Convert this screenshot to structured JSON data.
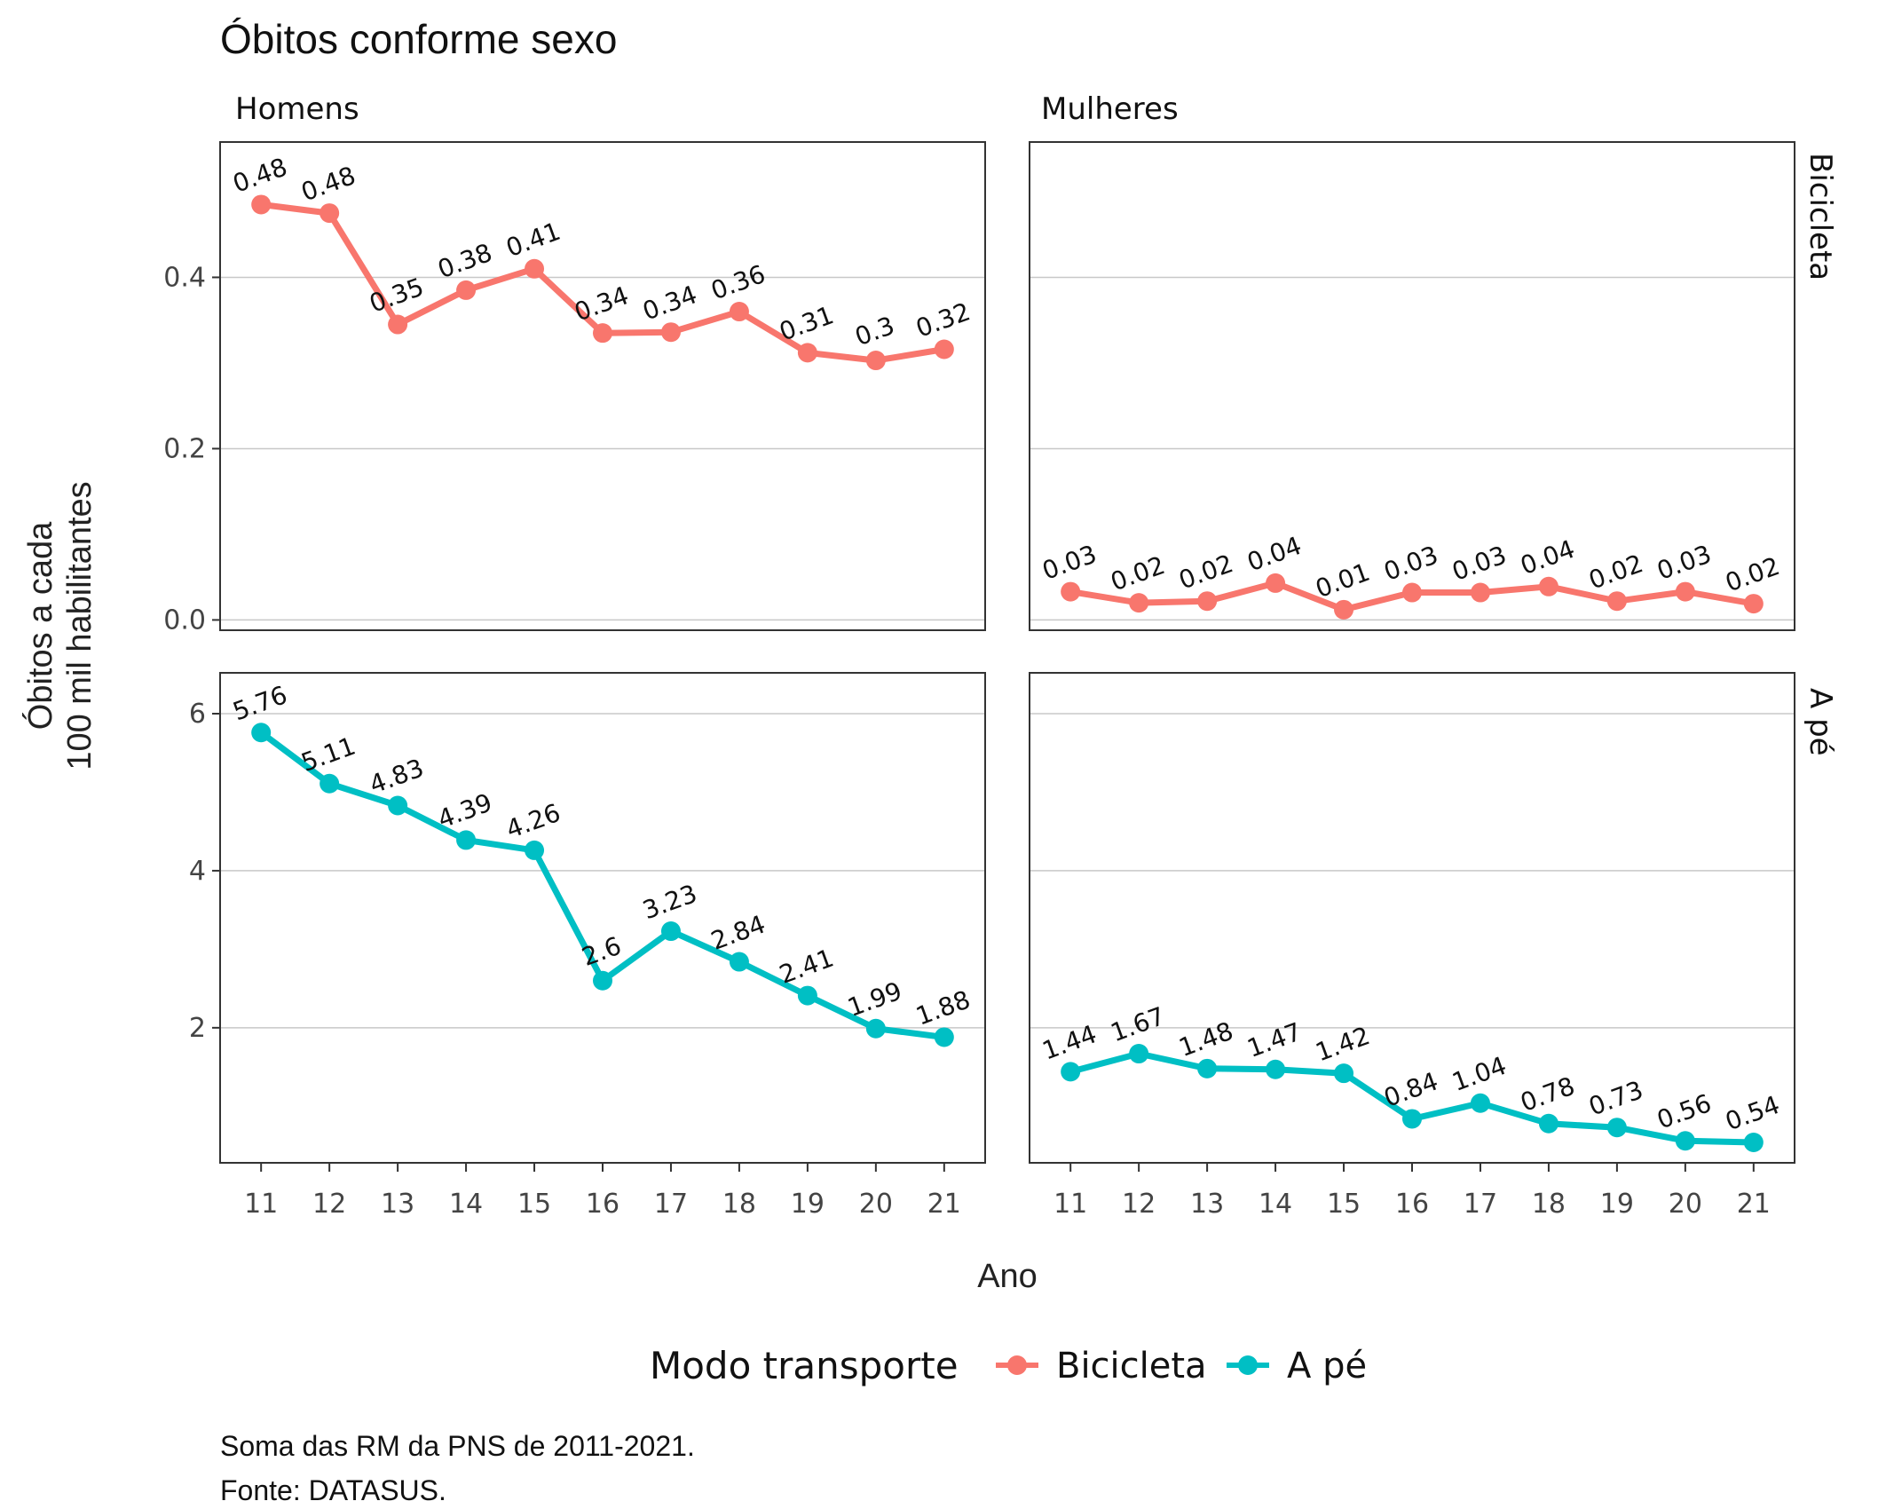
{
  "title": "Óbitos conforme sexo",
  "facets": {
    "columns": [
      "Homens",
      "Mulheres"
    ],
    "rows": [
      "Bicicleta",
      "A pé"
    ]
  },
  "axes": {
    "xlabel": "Ano",
    "ylabel_line1": "Óbitos a cada",
    "ylabel_line2": "100 mil habilitantes"
  },
  "legend": {
    "title": "Modo transporte",
    "items": [
      {
        "label": "Bicicleta",
        "color": "#F8766D"
      },
      {
        "label": "A pé",
        "color": "#00BFC4"
      }
    ]
  },
  "caption": {
    "line1": "Soma das RM da PNS de 2011-2021.",
    "line2": "Fonte: DATASUS."
  },
  "chart_data": [
    {
      "type": "line",
      "panel": "Homens / Bicicleta",
      "x": [
        11,
        12,
        13,
        14,
        15,
        16,
        17,
        18,
        19,
        20,
        21
      ],
      "series": [
        {
          "name": "Bicicleta",
          "values": [
            0.485,
            0.475,
            0.345,
            0.385,
            0.41,
            0.335,
            0.336,
            0.36,
            0.312,
            0.303,
            0.316
          ]
        }
      ],
      "labels": [
        "0.48",
        "0.48",
        "0.35",
        "0.38",
        "0.41",
        "0.34",
        "0.34",
        "0.36",
        "0.31",
        "0.3",
        "0.32"
      ],
      "ylim": [
        -0.012,
        0.558
      ],
      "yticks": [
        0.0,
        0.2,
        0.4
      ],
      "ytick_labels": [
        "0.0",
        "0.2",
        "0.4"
      ]
    },
    {
      "type": "line",
      "panel": "Mulheres / Bicicleta",
      "x": [
        11,
        12,
        13,
        14,
        15,
        16,
        17,
        18,
        19,
        20,
        21
      ],
      "series": [
        {
          "name": "Bicicleta",
          "values": [
            0.033,
            0.02,
            0.022,
            0.043,
            0.012,
            0.032,
            0.032,
            0.039,
            0.022,
            0.033,
            0.019
          ]
        }
      ],
      "labels": [
        "0.03",
        "0.02",
        "0.02",
        "0.04",
        "0.01",
        "0.03",
        "0.03",
        "0.04",
        "0.02",
        "0.03",
        "0.02"
      ],
      "ylim": [
        -0.012,
        0.558
      ],
      "yticks": [
        0.0,
        0.2,
        0.4
      ],
      "ytick_labels": [
        "0.0",
        "0.2",
        "0.4"
      ]
    },
    {
      "type": "line",
      "panel": "Homens / A pé",
      "x": [
        11,
        12,
        13,
        14,
        15,
        16,
        17,
        18,
        19,
        20,
        21
      ],
      "series": [
        {
          "name": "A pé",
          "values": [
            5.76,
            5.11,
            4.83,
            4.39,
            4.26,
            2.6,
            3.23,
            2.84,
            2.41,
            1.99,
            1.88
          ]
        }
      ],
      "labels": [
        "5.76",
        "5.11",
        "4.83",
        "4.39",
        "4.26",
        "2.6",
        "3.23",
        "2.84",
        "2.41",
        "1.99",
        "1.88"
      ],
      "ylim": [
        0.28,
        6.52
      ],
      "yticks": [
        2,
        4,
        6
      ],
      "ytick_labels": [
        "2",
        "4",
        "6"
      ]
    },
    {
      "type": "line",
      "panel": "Mulheres / A pé",
      "x": [
        11,
        12,
        13,
        14,
        15,
        16,
        17,
        18,
        19,
        20,
        21
      ],
      "series": [
        {
          "name": "A pé",
          "values": [
            1.44,
            1.67,
            1.48,
            1.47,
            1.42,
            0.84,
            1.04,
            0.78,
            0.73,
            0.56,
            0.54
          ]
        }
      ],
      "labels": [
        "1.44",
        "1.67",
        "1.48",
        "1.47",
        "1.42",
        "0.84",
        "1.04",
        "0.78",
        "0.73",
        "0.56",
        "0.54"
      ],
      "ylim": [
        0.28,
        6.52
      ],
      "yticks": [
        2,
        4,
        6
      ],
      "ytick_labels": [
        "2",
        "4",
        "6"
      ]
    }
  ],
  "xticks": [
    11,
    12,
    13,
    14,
    15,
    16,
    17,
    18,
    19,
    20,
    21
  ],
  "grid": true
}
